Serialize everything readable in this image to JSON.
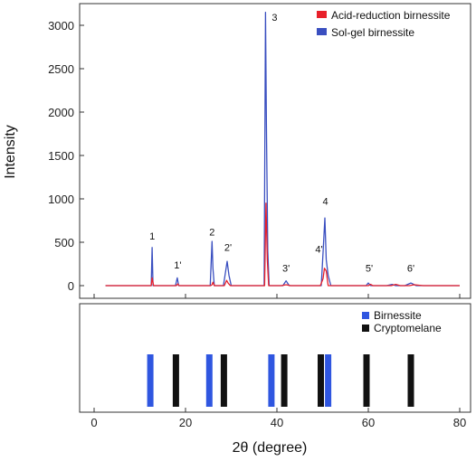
{
  "chart_data": [
    {
      "type": "line",
      "ylabel": "Intensity",
      "xlim": [
        0,
        80
      ],
      "ylim": [
        -150,
        3300
      ],
      "y_ticks": [
        0,
        500,
        1000,
        1500,
        2000,
        2500,
        3000
      ],
      "legend": {
        "position": "top-right",
        "entries": [
          "Acid-reduction birnessite",
          "Sol-gel birnessite"
        ]
      },
      "colors": {
        "acid": "#e8202a",
        "solgel": "#3a4fc0"
      },
      "series": [
        {
          "name": "Acid-reduction birnessite",
          "color": "#e8202a",
          "x": [
            2.5,
            12,
            12.5,
            12.7,
            13,
            13.5,
            18,
            18.3,
            18.6,
            25.5,
            25.8,
            26.0,
            26.3,
            28.5,
            29,
            29.3,
            29.8,
            36.5,
            37.3,
            37.6,
            37.9,
            38.2,
            38.7,
            41,
            42,
            43,
            49.5,
            50.1,
            50.4,
            50.8,
            51.2,
            52,
            60,
            60.5,
            61,
            65,
            66,
            67,
            69,
            70,
            72,
            80
          ],
          "y": [
            0,
            0,
            0,
            90,
            0,
            0,
            0,
            20,
            0,
            0,
            10,
            40,
            0,
            0,
            60,
            30,
            0,
            0,
            0,
            950,
            300,
            0,
            0,
            0,
            10,
            0,
            0,
            80,
            200,
            170,
            0,
            0,
            0,
            15,
            0,
            0,
            15,
            0,
            0,
            10,
            0,
            0
          ]
        },
        {
          "name": "Sol-gel birnessite",
          "color": "#3a4fc0",
          "x": [
            2.5,
            12,
            12.5,
            12.7,
            12.9,
            13.3,
            17.8,
            18.2,
            18.5,
            25.4,
            25.8,
            26.0,
            26.3,
            28.3,
            28.8,
            29.1,
            29.5,
            30,
            36.5,
            37.2,
            37.5,
            37.7,
            38.0,
            38.3,
            38.8,
            41.3,
            42.0,
            42.7,
            49.7,
            50.2,
            50.5,
            50.8,
            51.2,
            51.8,
            59.5,
            60.0,
            60.5,
            64,
            65.2,
            66,
            68,
            69.3,
            70.5,
            72,
            80
          ],
          "y": [
            0,
            0,
            0,
            440,
            0,
            0,
            0,
            90,
            0,
            0,
            510,
            200,
            0,
            0,
            170,
            280,
            120,
            0,
            0,
            0,
            3150,
            1850,
            400,
            0,
            0,
            0,
            55,
            0,
            0,
            480,
            780,
            300,
            120,
            0,
            0,
            30,
            0,
            0,
            15,
            0,
            0,
            30,
            0,
            0,
            0
          ]
        }
      ],
      "annotations": [
        {
          "text": "1",
          "x": 12.7,
          "y": 530
        },
        {
          "text": "1'",
          "x": 18.3,
          "y": 200
        },
        {
          "text": "2",
          "x": 25.8,
          "y": 580
        },
        {
          "text": "2'",
          "x": 29.3,
          "y": 400
        },
        {
          "text": "3",
          "x": 39.5,
          "y": 3050
        },
        {
          "text": "3'",
          "x": 42.0,
          "y": 160
        },
        {
          "text": "4'",
          "x": 49.2,
          "y": 380
        },
        {
          "text": "4",
          "x": 50.6,
          "y": 930
        },
        {
          "text": "5'",
          "x": 60.2,
          "y": 160
        },
        {
          "text": "6'",
          "x": 69.3,
          "y": 160
        }
      ]
    },
    {
      "type": "bar",
      "xlabel": "2θ (degree)",
      "xlim": [
        0,
        80
      ],
      "x_ticks": [
        0,
        20,
        40,
        60,
        80
      ],
      "legend": {
        "position": "top-right",
        "entries": [
          "Birnessite",
          "Cryptomelane"
        ]
      },
      "colors": {
        "birnessite": "#2f56e0",
        "cryptomelane": "#111111"
      },
      "series": [
        {
          "name": "Birnessite",
          "color": "#2f56e0",
          "x": [
            12.3,
            25.2,
            38.8,
            51.2
          ]
        },
        {
          "name": "Cryptomelane",
          "color": "#111111",
          "x": [
            17.9,
            28.4,
            41.6,
            49.6,
            59.6,
            69.3
          ]
        }
      ]
    }
  ]
}
